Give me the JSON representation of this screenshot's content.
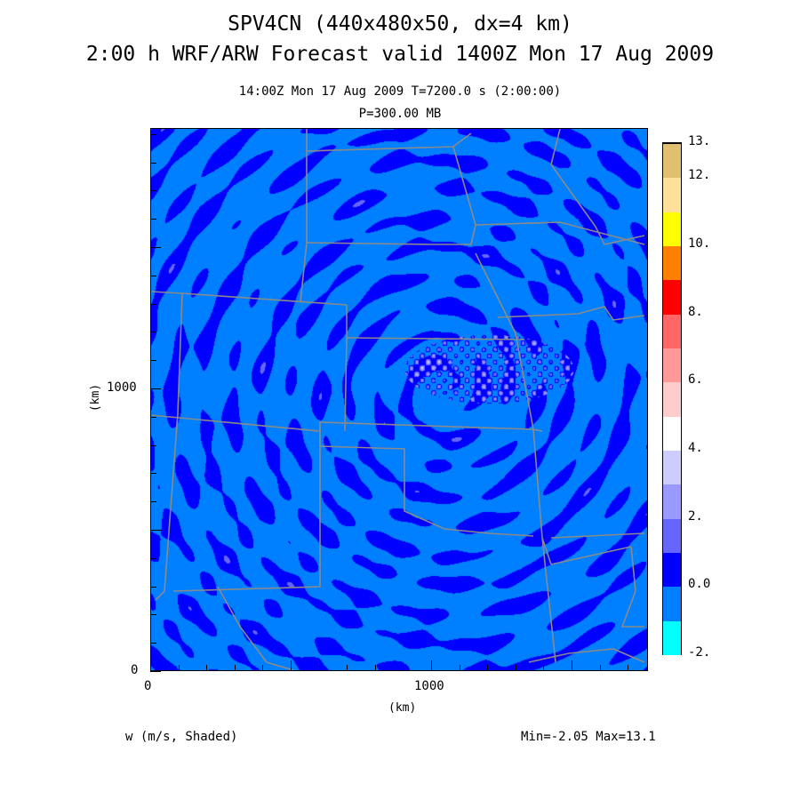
{
  "title": {
    "line1": "SPV4CN (440x480x50, dx=4 km)",
    "line2": "2:00 h WRF/ARW Forecast valid 1400Z Mon 17 Aug 2009",
    "sub1": "14:00Z Mon 17 Aug 2009    T=7200.0 s (2:00:00)",
    "sub2": "P=300.00 MB"
  },
  "axes": {
    "x_label": "(km)",
    "y_label": "(km)",
    "x_ticks": [
      "0",
      "1000"
    ],
    "y_ticks": [
      "0",
      "1000"
    ]
  },
  "footer": {
    "field_label": "w (m/s, Shaded)",
    "minmax": "Min=-2.05 Max=13.1"
  },
  "chart_data": {
    "type": "heatmap",
    "variable": "w (m/s, Shaded)",
    "x_range_km": [
      0,
      1760
    ],
    "y_range_km": [
      0,
      1920
    ],
    "min": -2.05,
    "max": 13.1,
    "levels": [
      -2,
      -1,
      0,
      1,
      2,
      3,
      4,
      5,
      6,
      7,
      8,
      9,
      10,
      11,
      12,
      13
    ],
    "colorbar_labels": [
      "13.",
      "12.",
      "10.",
      "8.",
      "6.",
      "4.",
      "2.",
      "0.0",
      "-2."
    ],
    "colors": [
      "#00ffff",
      "#0080ff",
      "#0000ff",
      "#6666ff",
      "#9999ff",
      "#ccccff",
      "#ffffff",
      "#ffcccc",
      "#ff9999",
      "#ff6666",
      "#ff0000",
      "#ff8000",
      "#ffff00",
      "#ffe099",
      "#e0c070"
    ]
  }
}
